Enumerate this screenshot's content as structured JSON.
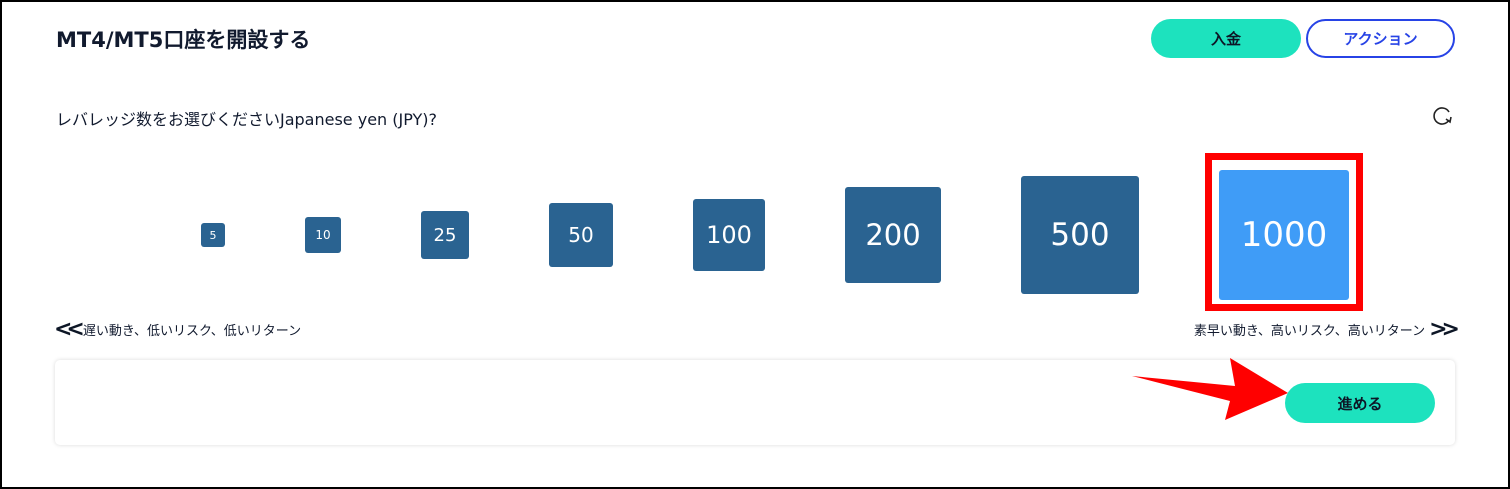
{
  "header": {
    "title": "MT4/MT5口座を開設する",
    "deposit_label": "入金",
    "action_label": "アクション"
  },
  "question": "レバレッジ数をお選びくださいJapanese yen (JPY)?",
  "leverage_options": [
    {
      "value": "5",
      "selected": false
    },
    {
      "value": "10",
      "selected": false
    },
    {
      "value": "25",
      "selected": false
    },
    {
      "value": "50",
      "selected": false
    },
    {
      "value": "100",
      "selected": false
    },
    {
      "value": "200",
      "selected": false
    },
    {
      "value": "500",
      "selected": false
    },
    {
      "value": "1000",
      "selected": true
    }
  ],
  "hints": {
    "low": "遅い動き、低いリスク、低いリターン",
    "high": "素早い動き、高いリスク、高いリターン"
  },
  "footer": {
    "next_label": "進める"
  },
  "colors": {
    "accent": "#1de2be",
    "option": "#2a6391",
    "selected": "#3f9cf7",
    "action_border": "#2743e6",
    "annotation": "#ff0000"
  }
}
